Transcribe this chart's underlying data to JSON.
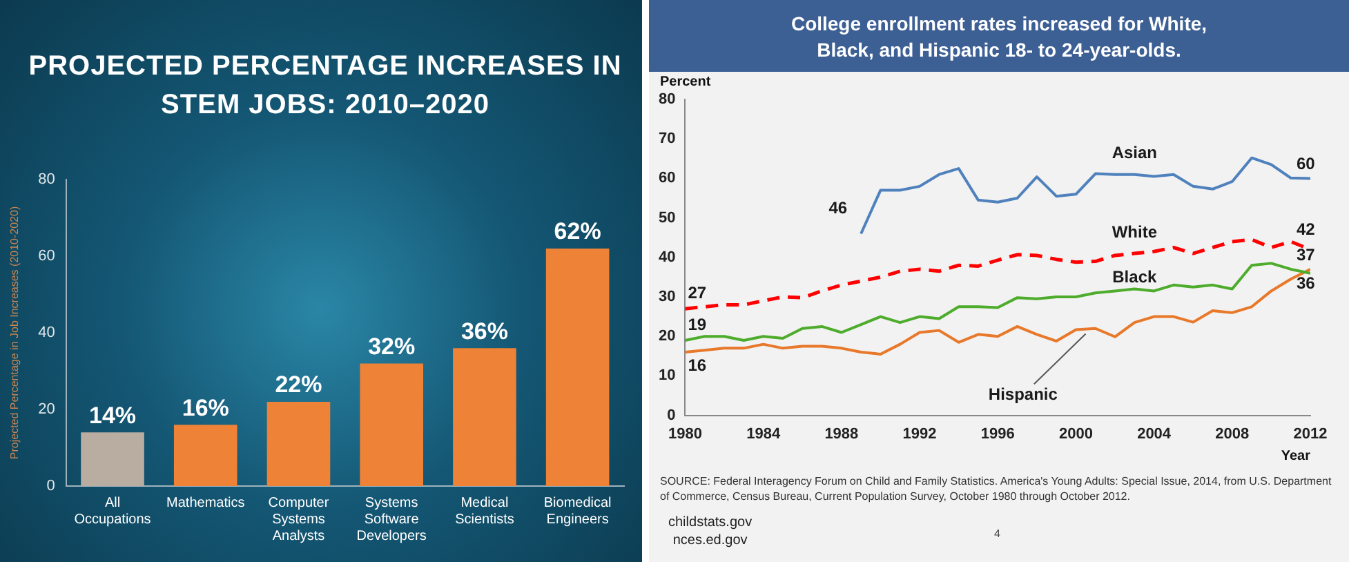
{
  "chart_data": [
    {
      "type": "bar",
      "title": "PROJECTED PERCENTAGE INCREASES IN STEM JOBS: 2010–2020",
      "ylabel": "Projected Percentage in Job Increases (2010-2020)",
      "categories": [
        "All Occupations",
        "Mathematics",
        "Computer Systems Analysts",
        "Systems Software Developers",
        "Medical Scientists",
        "Biomedical Engineers"
      ],
      "values": [
        14,
        16,
        22,
        32,
        36,
        62
      ],
      "value_labels": [
        "14%",
        "16%",
        "22%",
        "32%",
        "36%",
        "62%"
      ],
      "colors": [
        "#b8ada0",
        "#ee8236",
        "#ee8236",
        "#ee8236",
        "#ee8236",
        "#ee8236"
      ],
      "ylim": [
        0,
        80
      ],
      "yticks": [
        0,
        20,
        40,
        60,
        80
      ],
      "grid": false,
      "legend": false
    },
    {
      "type": "line",
      "title": "College enrollment rates increased for White, Black, and Hispanic 18- to 24-year-olds.",
      "xlabel": "Year",
      "ylabel": "Percent",
      "x": [
        1980,
        1981,
        1982,
        1983,
        1984,
        1985,
        1986,
        1987,
        1988,
        1989,
        1990,
        1991,
        1992,
        1993,
        1994,
        1995,
        1996,
        1997,
        1998,
        1999,
        2000,
        2001,
        2002,
        2003,
        2004,
        2005,
        2006,
        2007,
        2008,
        2009,
        2010,
        2011,
        2012
      ],
      "series": [
        {
          "name": "Asian",
          "color": "#4f81bd",
          "line_style": "solid",
          "values": [
            null,
            null,
            null,
            null,
            null,
            null,
            null,
            null,
            null,
            46,
            57,
            57,
            58,
            61,
            62.5,
            54.5,
            54,
            55,
            60.4,
            55.5,
            56,
            61.2,
            61,
            61,
            60.5,
            61,
            58,
            57.3,
            59.2,
            65.2,
            63.5,
            60.1,
            60
          ],
          "value_labels": [
            null,
            null,
            null,
            null,
            null,
            null,
            null,
            null,
            null,
            "46",
            null,
            null,
            null,
            null,
            null,
            null,
            null,
            null,
            null,
            null,
            null,
            null,
            null,
            null,
            null,
            null,
            null,
            null,
            null,
            null,
            null,
            null,
            "60"
          ]
        },
        {
          "name": "White",
          "color": "#ff0000",
          "line_style": "dashed",
          "values": [
            27,
            27.5,
            28,
            28,
            29,
            30,
            29.8,
            31.5,
            33,
            34,
            35,
            36.5,
            37,
            36.5,
            38,
            37.8,
            39.3,
            40.7,
            40.5,
            39.5,
            38.8,
            39,
            40.5,
            41,
            41.5,
            42.5,
            41,
            42.5,
            44,
            44.5,
            42.5,
            44,
            42
          ],
          "value_labels": [
            "27",
            null,
            null,
            null,
            null,
            null,
            null,
            null,
            null,
            null,
            null,
            null,
            null,
            null,
            null,
            null,
            null,
            null,
            null,
            null,
            null,
            null,
            null,
            null,
            null,
            null,
            null,
            null,
            null,
            null,
            null,
            null,
            "42"
          ]
        },
        {
          "name": "Black",
          "color": "#4eac2c",
          "line_style": "solid",
          "values": [
            19,
            20,
            20,
            19,
            20,
            19.5,
            22,
            22.5,
            21,
            23,
            25,
            23.5,
            25,
            24.5,
            27.5,
            27.5,
            27.3,
            29.8,
            29.5,
            30,
            30,
            31,
            31.5,
            32,
            31.5,
            33,
            32.5,
            33,
            32,
            38,
            38.5,
            37,
            36
          ],
          "value_labels": [
            "19",
            null,
            null,
            null,
            null,
            null,
            null,
            null,
            null,
            null,
            null,
            null,
            null,
            null,
            null,
            null,
            null,
            null,
            null,
            null,
            null,
            null,
            null,
            null,
            null,
            null,
            null,
            null,
            null,
            null,
            null,
            null,
            "36"
          ]
        },
        {
          "name": "Hispanic",
          "color": "#e8782a",
          "line_style": "solid",
          "values": [
            16,
            16.5,
            17,
            17,
            18,
            17,
            17.5,
            17.5,
            17,
            16,
            15.5,
            18,
            21,
            21.5,
            18.5,
            20.5,
            20,
            22.5,
            20.5,
            18.8,
            21.7,
            22,
            19.9,
            23.5,
            25,
            25,
            23.6,
            26.5,
            26,
            27.5,
            31.5,
            34.5,
            37
          ],
          "value_labels": [
            "16",
            null,
            null,
            null,
            null,
            null,
            null,
            null,
            null,
            null,
            null,
            null,
            null,
            null,
            null,
            null,
            null,
            null,
            null,
            null,
            null,
            null,
            null,
            null,
            null,
            null,
            null,
            null,
            null,
            null,
            null,
            null,
            "37"
          ]
        }
      ],
      "xlim": [
        1980,
        2012
      ],
      "xticks": [
        1980,
        1984,
        1988,
        1992,
        1996,
        2000,
        2004,
        2008,
        2012
      ],
      "ylim": [
        0,
        80
      ],
      "yticks": [
        0,
        10,
        20,
        30,
        40,
        50,
        60,
        70,
        80
      ],
      "grid": false,
      "legend": false,
      "marker": "none",
      "annotations": [
        "SOURCE: Federal Interagency Forum on Child and Family Statistics. America's Young Adults: Special Issue, 2014, from U.S. Department of Commerce, Census Bureau, Current Population Survey, October 1980 through October 2012.",
        "childstats.gov",
        "nces.ed.gov",
        "4"
      ]
    }
  ]
}
